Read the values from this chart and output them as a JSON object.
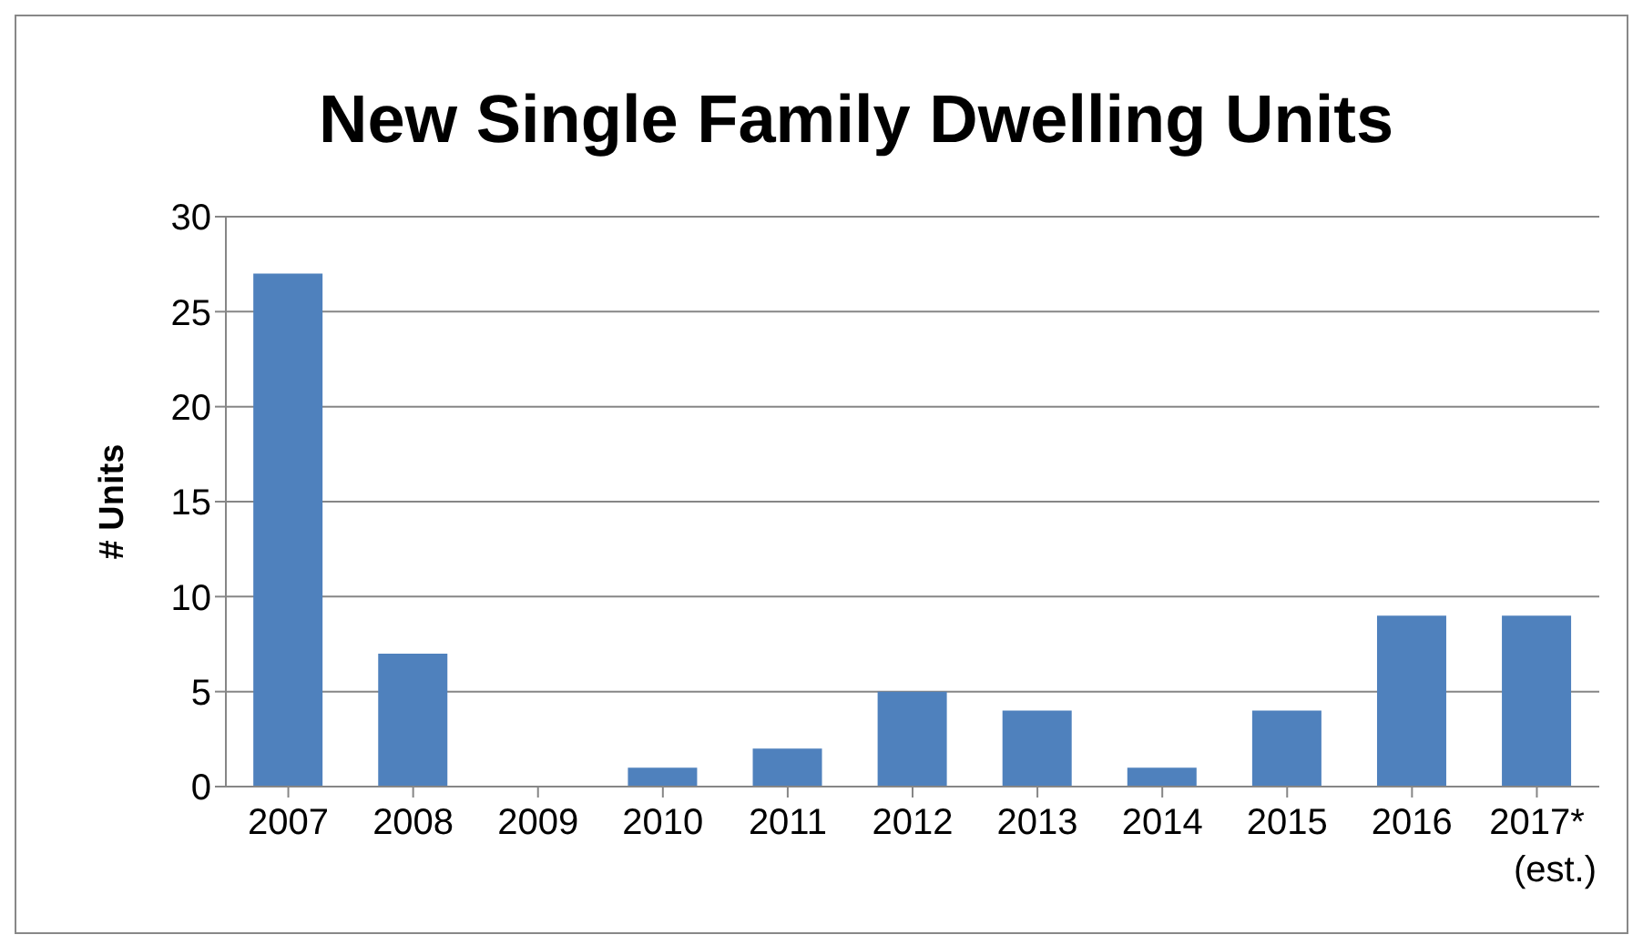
{
  "chart_data": {
    "type": "bar",
    "title": "New Single Family Dwelling Units",
    "ylabel": "# Units",
    "categories": [
      "2007",
      "2008",
      "2009",
      "2010",
      "2011",
      "2012",
      "2013",
      "2014",
      "2015",
      "2016",
      "2017* (est.)"
    ],
    "values": [
      27,
      7,
      0,
      1,
      2,
      5,
      4,
      1,
      4,
      9,
      9
    ],
    "color": "#4f81bd",
    "ylim": [
      0,
      30
    ],
    "yticks": [
      0,
      5,
      10,
      15,
      20,
      25,
      30
    ],
    "grid": "y"
  }
}
